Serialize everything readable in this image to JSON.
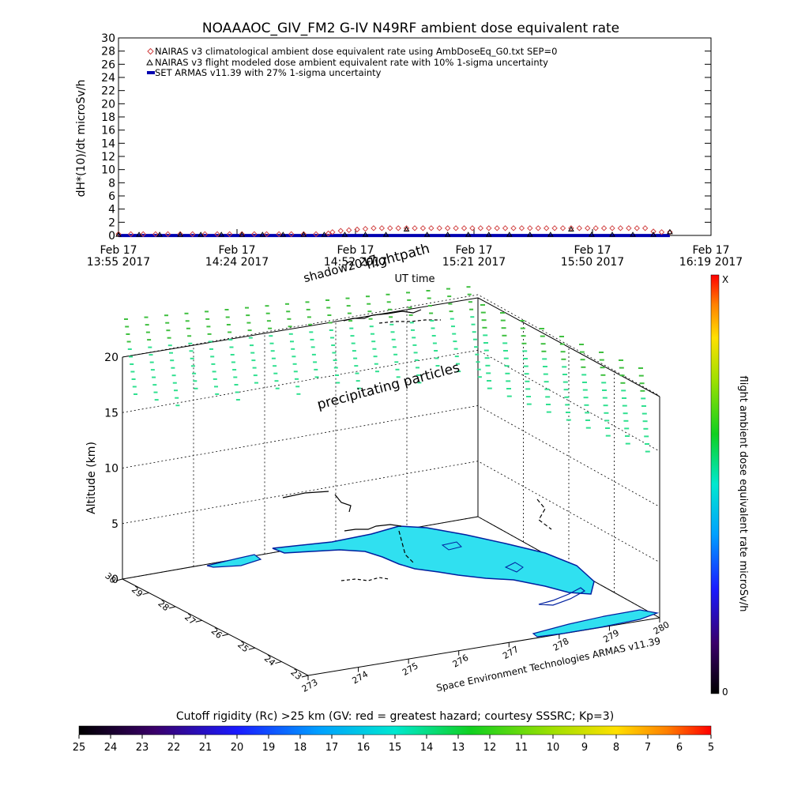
{
  "colors": {
    "background": "#ffffff",
    "climatological": "#d04040",
    "modeled": "#000000",
    "armas": "#0000b0",
    "dose_dots": "#30e090",
    "dose_dots_top": "#40c040",
    "land_fill": "#30e0f0",
    "coast_line": "#0020a0"
  },
  "chart_data": [
    {
      "type": "line",
      "title": "NOAAAOC_GIV_FM2 G-IV    N49RF  ambient dose equivalent rate",
      "ylabel": "dH*(10)/dt microSv/h",
      "xlabel": "UT time",
      "ylim": [
        0,
        30
      ],
      "y_ticks": [
        "0",
        "2",
        "4",
        "6",
        "8",
        "10",
        "12",
        "14",
        "16",
        "18",
        "20",
        "22",
        "24",
        "26",
        "28",
        "30"
      ],
      "x_ticks": [
        {
          "line1": "Feb 17",
          "line2": "13:55 2017"
        },
        {
          "line1": "Feb 17",
          "line2": "14:24 2017"
        },
        {
          "line1": "Feb 17",
          "line2": "14:52 2017"
        },
        {
          "line1": "Feb 17",
          "line2": "15:21 2017"
        },
        {
          "line1": "Feb 17",
          "line2": "15:50 2017"
        },
        {
          "line1": "Feb 17",
          "line2": "16:19 2017"
        }
      ],
      "legend_position": "top-left",
      "series": [
        {
          "name": "NAIRAS v3 climatological ambient dose equivalent rate using AmbDoseEq_G0.txt SEP=0",
          "marker": "diamond",
          "x_minutes_after_1355": [
            0,
            3,
            6,
            9,
            12,
            15,
            18,
            21,
            24,
            27,
            30,
            33,
            36,
            39,
            42,
            45,
            48,
            51,
            52,
            54,
            56,
            58,
            60,
            62,
            64,
            66,
            68,
            70,
            72,
            74,
            76,
            78,
            80,
            82,
            84,
            86,
            88,
            90,
            92,
            94,
            96,
            98,
            100,
            102,
            104,
            106,
            108,
            110,
            112,
            114,
            116,
            118,
            120,
            122,
            124,
            126,
            128,
            130,
            132,
            134
          ],
          "values": [
            0.2,
            0.2,
            0.2,
            0.2,
            0.2,
            0.2,
            0.2,
            0.2,
            0.2,
            0.2,
            0.2,
            0.2,
            0.2,
            0.2,
            0.2,
            0.2,
            0.2,
            0.3,
            0.5,
            0.7,
            0.8,
            0.9,
            1.0,
            1.1,
            1.1,
            1.1,
            1.1,
            1.1,
            1.1,
            1.1,
            1.1,
            1.1,
            1.1,
            1.1,
            1.1,
            1.1,
            1.1,
            1.1,
            1.1,
            1.1,
            1.1,
            1.1,
            1.1,
            1.1,
            1.1,
            1.1,
            1.1,
            1.1,
            1.1,
            1.1,
            1.1,
            1.1,
            1.1,
            1.1,
            1.1,
            1.1,
            1.1,
            0.6,
            0.5,
            0.5
          ]
        },
        {
          "name": "NAIRAS v3 flight modeled dose ambient equivalent rate with 10% 1-sigma uncertainty",
          "marker": "triangle",
          "x_minutes_after_1355": [
            0,
            5,
            10,
            15,
            20,
            25,
            30,
            35,
            40,
            45,
            50,
            55,
            60,
            65,
            70,
            75,
            80,
            85,
            90,
            95,
            100,
            105,
            110,
            115,
            120,
            125,
            130,
            134
          ],
          "values": [
            0.1,
            0.1,
            0.1,
            0.1,
            0.1,
            0.1,
            0.1,
            0.1,
            0.1,
            0.1,
            0.1,
            0.1,
            0.1,
            0.1,
            0.9,
            0.1,
            0.1,
            0.1,
            0.1,
            0.1,
            0.1,
            0.1,
            0.9,
            0.1,
            0.1,
            0.1,
            0.1,
            0.5
          ]
        },
        {
          "name": "SET ARMAS v11.39 with 27% 1-sigma uncertainty",
          "marker": "dot",
          "x_minutes_after_1355": [
            0,
            134
          ],
          "values": [
            0.1,
            0.1
          ]
        }
      ]
    },
    {
      "type": "scatter",
      "zlabel": "Altitude (km)",
      "z_ticks": [
        "0",
        "5",
        "10",
        "15",
        "20"
      ],
      "lat_ticks": [
        "30",
        "29",
        "28",
        "27",
        "26",
        "25",
        "24",
        "23"
      ],
      "lon_ticks": [
        "273",
        "274",
        "275",
        "276",
        "277",
        "278",
        "279",
        "280"
      ],
      "annotations": {
        "flightpath": "flightpath",
        "shadow": "shadow2017",
        "particles": "precipitating particles",
        "credit": "Space Environment Technologies ARMAS v11.39"
      },
      "colorbar": {
        "label": "flight ambient dose equivalent rate microSv/h",
        "top_label": "X",
        "bottom_label": "0"
      }
    },
    {
      "type": "heatmap",
      "title": "Cutoff rigidity (Rc) >25 km (GV: red = greatest hazard; courtesy SSSRC; Kp=3)",
      "tick_labels": [
        "25",
        "24",
        "23",
        "22",
        "21",
        "20",
        "19",
        "18",
        "17",
        "16",
        "15",
        "14",
        "13",
        "12",
        "11",
        "10",
        "9",
        "8",
        "7",
        "6",
        "5"
      ]
    }
  ]
}
